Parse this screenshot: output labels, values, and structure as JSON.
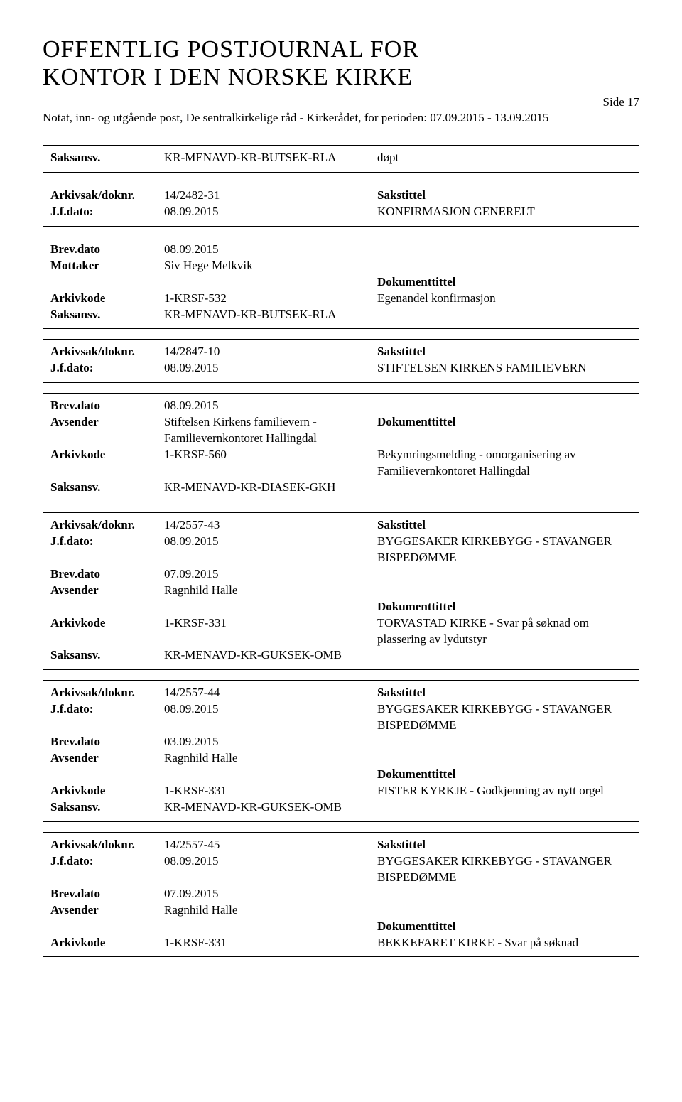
{
  "header": {
    "title_line1": "OFFENTLIG POSTJOURNAL FOR",
    "title_line2": "KONTOR I DEN NORSKE KIRKE",
    "side_label": "Side 17",
    "subtitle": "Notat, inn- og utgående post, De sentralkirkelige råd - Kirkerådet, for perioden: 07.09.2015 - 13.09.2015"
  },
  "labels": {
    "saksansv": "Saksansv.",
    "arkivsak": "Arkivsak/doknr.",
    "jfdato": "J.f.dato:",
    "brevdato": "Brev.dato",
    "mottaker": "Mottaker",
    "avsender": "Avsender",
    "arkivkode": "Arkivkode",
    "sakstittel": "Sakstittel",
    "dokumenttittel": "Dokumenttittel"
  },
  "blocks": [
    {
      "rows": [
        {
          "label_key": "saksansv",
          "mid": "KR-MENAVD-KR-BUTSEK-RLA",
          "right": "døpt"
        }
      ]
    },
    {
      "rows": [
        {
          "label_key": "arkivsak",
          "mid": "14/2482-31",
          "right_label_key": "sakstittel"
        },
        {
          "label_key": "jfdato",
          "mid": "08.09.2015",
          "right": "KONFIRMASJON GENERELT"
        }
      ]
    },
    {
      "rows": [
        {
          "label_key": "brevdato",
          "mid": "08.09.2015"
        },
        {
          "label_key": "mottaker",
          "mid": "Siv Hege Melkvik"
        },
        {
          "right_label_key": "dokumenttittel"
        },
        {
          "label_key": "arkivkode",
          "mid": "1-KRSF-532",
          "right": "Egenandel konfirmasjon"
        },
        {
          "label_key": "saksansv",
          "mid": "KR-MENAVD-KR-BUTSEK-RLA"
        }
      ]
    },
    {
      "rows": [
        {
          "label_key": "arkivsak",
          "mid": "14/2847-10",
          "right_label_key": "sakstittel"
        },
        {
          "label_key": "jfdato",
          "mid": "08.09.2015",
          "right": "STIFTELSEN KIRKENS FAMILIEVERN"
        }
      ]
    },
    {
      "rows": [
        {
          "label_key": "brevdato",
          "mid": "08.09.2015"
        },
        {
          "label_key": "avsender",
          "mid": "Stiftelsen Kirkens familievern - Familievernkontoret Hallingdal",
          "right_label_key": "dokumenttittel"
        },
        {
          "label_key": "arkivkode",
          "mid": "1-KRSF-560",
          "right": "Bekymringsmelding - omorganisering av Familievernkontoret Hallingdal"
        },
        {
          "label_key": "saksansv",
          "mid": "KR-MENAVD-KR-DIASEK-GKH"
        }
      ]
    },
    {
      "rows": [
        {
          "label_key": "arkivsak",
          "mid": "14/2557-43",
          "right_label_key": "sakstittel"
        },
        {
          "label_key": "jfdato",
          "mid": "08.09.2015",
          "right": "BYGGESAKER KIRKEBYGG - STAVANGER BISPEDØMME"
        },
        {
          "label_key": "brevdato",
          "mid": "07.09.2015"
        },
        {
          "label_key": "avsender",
          "mid": "Ragnhild Halle"
        },
        {
          "right_label_key": "dokumenttittel"
        },
        {
          "label_key": "arkivkode",
          "mid": "1-KRSF-331",
          "right": "TORVASTAD KIRKE - Svar på søknad om plassering av lydutstyr"
        },
        {
          "label_key": "saksansv",
          "mid": "KR-MENAVD-KR-GUKSEK-OMB"
        }
      ]
    },
    {
      "rows": [
        {
          "label_key": "arkivsak",
          "mid": "14/2557-44",
          "right_label_key": "sakstittel"
        },
        {
          "label_key": "jfdato",
          "mid": "08.09.2015",
          "right": "BYGGESAKER KIRKEBYGG - STAVANGER BISPEDØMME"
        },
        {
          "label_key": "brevdato",
          "mid": "03.09.2015"
        },
        {
          "label_key": "avsender",
          "mid": "Ragnhild Halle"
        },
        {
          "right_label_key": "dokumenttittel"
        },
        {
          "label_key": "arkivkode",
          "mid": "1-KRSF-331",
          "right": "FISTER KYRKJE - Godkjenning av nytt orgel"
        },
        {
          "label_key": "saksansv",
          "mid": "KR-MENAVD-KR-GUKSEK-OMB"
        }
      ]
    },
    {
      "rows": [
        {
          "label_key": "arkivsak",
          "mid": "14/2557-45",
          "right_label_key": "sakstittel"
        },
        {
          "label_key": "jfdato",
          "mid": "08.09.2015",
          "right": "BYGGESAKER KIRKEBYGG - STAVANGER BISPEDØMME"
        },
        {
          "label_key": "brevdato",
          "mid": "07.09.2015"
        },
        {
          "label_key": "avsender",
          "mid": "Ragnhild Halle"
        },
        {
          "right_label_key": "dokumenttittel"
        },
        {
          "label_key": "arkivkode",
          "mid": "1-KRSF-331",
          "right": "BEKKEFARET KIRKE - Svar på søknad"
        }
      ]
    }
  ]
}
